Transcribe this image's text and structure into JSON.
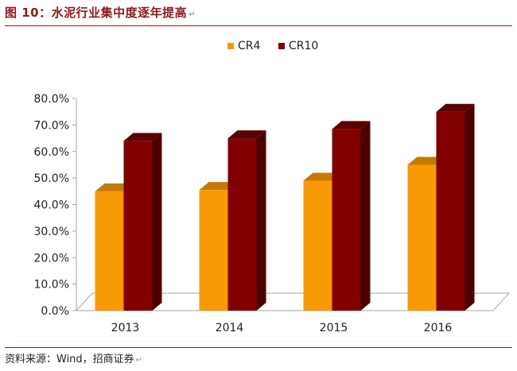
{
  "header": {
    "title": "图 10：水泥行业集中度逐年提高",
    "para_mark": "↵"
  },
  "footer": {
    "source": "资料来源：Wind，招商证券",
    "para_mark": "↵"
  },
  "chart_data": {
    "type": "bar",
    "title": "图 10：水泥行业集中度逐年提高",
    "xlabel": "",
    "ylabel": "",
    "categories": [
      "2013",
      "2014",
      "2015",
      "2016"
    ],
    "series": [
      {
        "name": "CR4",
        "values": [
          45.0,
          45.5,
          49.0,
          55.0
        ]
      },
      {
        "name": "CR10",
        "values": [
          64.0,
          65.0,
          68.5,
          75.0
        ]
      }
    ],
    "ylim": [
      0,
      80
    ],
    "yticks": [
      "0.0%",
      "10.0%",
      "20.0%",
      "30.0%",
      "40.0%",
      "50.0%",
      "60.0%",
      "70.0%",
      "80.0%"
    ],
    "legend_position": "top-center",
    "grid": false,
    "colors": {
      "CR4_front": "#f79a05",
      "CR4_top": "#c47a05",
      "CR4_side": "#b06c00",
      "CR10_front": "#800000",
      "CR10_top": "#5a0000",
      "CR10_side": "#4d0000",
      "axis": "#a6a6a6",
      "floor": "#ffffff",
      "text": "#222222"
    }
  }
}
